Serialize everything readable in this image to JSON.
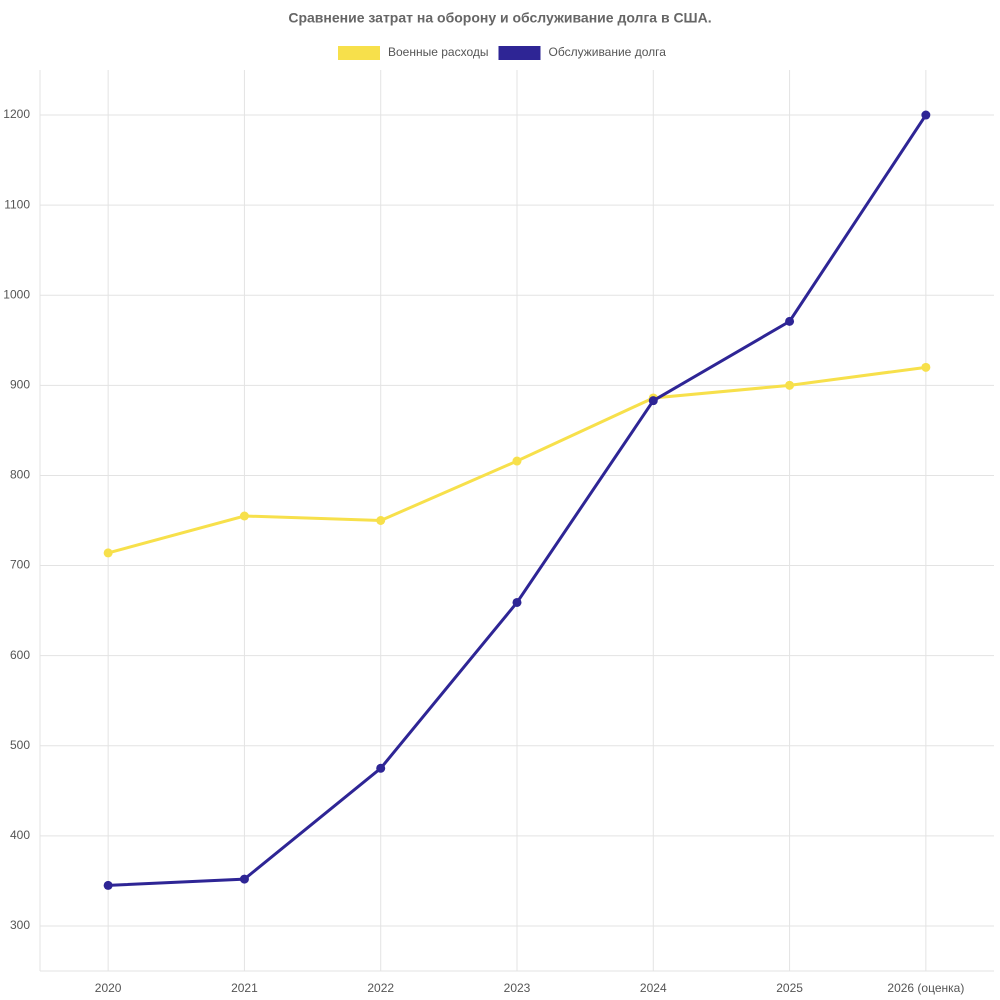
{
  "chart_data": {
    "type": "line",
    "title": "Сравнение затрат на оборону и обслуживание долга в США.",
    "categories": [
      "2020",
      "2021",
      "2022",
      "2023",
      "2024",
      "2025",
      "2026 (оценка)"
    ],
    "series": [
      {
        "name": "Военные расходы",
        "color": "#f7e04b",
        "values": [
          714,
          755,
          750,
          816,
          886,
          900,
          920
        ]
      },
      {
        "name": "Обслуживание долга",
        "color": "#2e2595",
        "values": [
          345,
          352,
          475,
          659,
          883,
          971,
          1200
        ]
      }
    ],
    "ylim": [
      250,
      1250
    ],
    "yticks": [
      300,
      400,
      500,
      600,
      700,
      800,
      900,
      1000,
      1100,
      1200
    ],
    "grid": true,
    "legend": "top"
  }
}
